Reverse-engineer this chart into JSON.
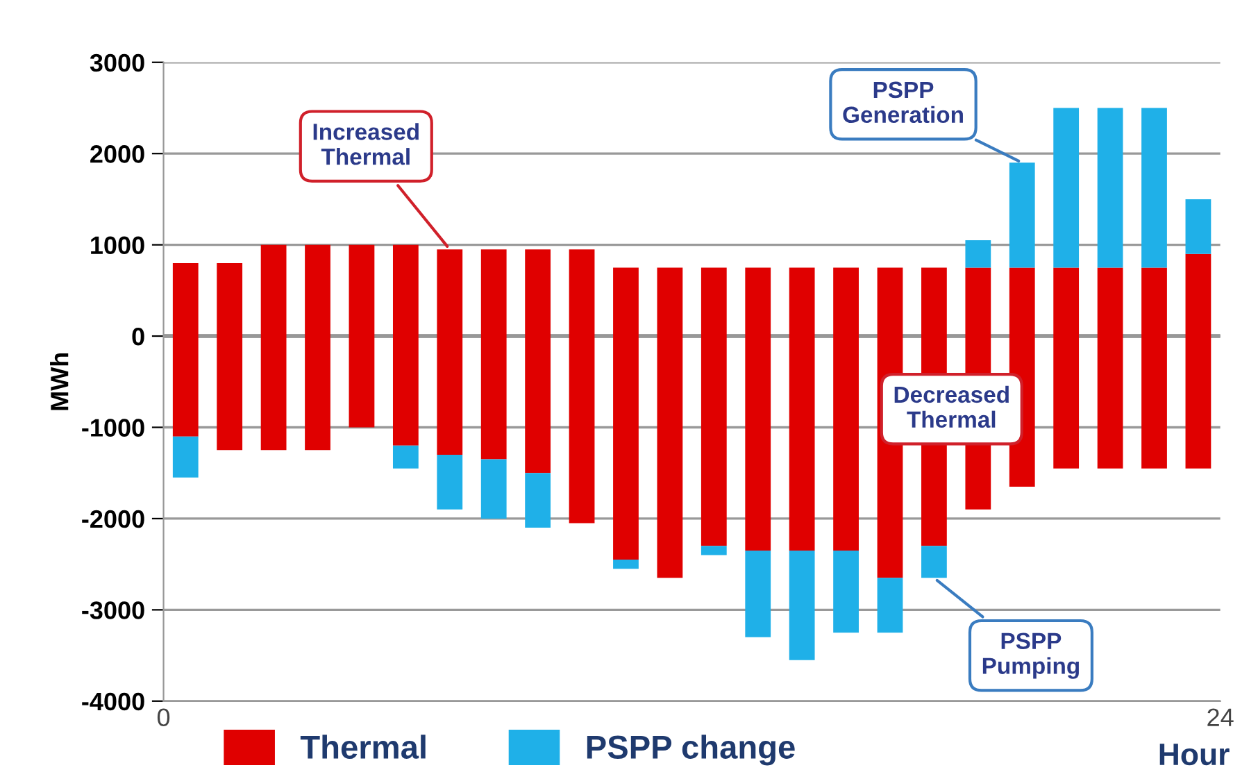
{
  "chart_data": {
    "type": "bar",
    "stacked": true,
    "ylabel": "MWh",
    "xlabel": "Hour",
    "x": [
      0.5,
      1.5,
      2.5,
      3.5,
      4.5,
      5.5,
      6.5,
      7.5,
      8.5,
      9.5,
      10.5,
      11.5,
      12.5,
      13.5,
      14.5,
      15.5,
      16.5,
      17.5,
      18.5,
      19.5,
      20.5,
      21.5,
      22.5,
      23.5
    ],
    "series": [
      {
        "name": "Thermal",
        "color": "#e00000",
        "values": [
          800,
          800,
          1000,
          1000,
          1000,
          1000,
          950,
          950,
          950,
          950,
          750,
          750,
          750,
          750,
          750,
          750,
          750,
          750,
          750,
          750,
          750,
          750,
          750,
          900
        ]
      },
      {
        "color": "#e00000",
        "values": [
          -1100,
          -1250,
          -1250,
          -1250,
          -1000,
          -1200,
          -1300,
          -1350,
          -1500,
          -2050,
          -2450,
          -2650,
          -2300,
          -2350,
          -2350,
          -2350,
          -2650,
          -2300,
          -1900,
          -1650,
          -1450,
          -1450,
          -1450,
          -1450
        ]
      },
      {
        "name": "PSPP change",
        "color": "#1fb0e8",
        "values": [
          null,
          null,
          null,
          null,
          null,
          null,
          null,
          null,
          null,
          null,
          null,
          null,
          null,
          null,
          null,
          null,
          null,
          null,
          300,
          1150,
          1750,
          1750,
          1750,
          600
        ]
      },
      {
        "color": "#1fb0e8",
        "values": [
          -450,
          null,
          null,
          null,
          null,
          -250,
          -600,
          -650,
          -600,
          null,
          -100,
          null,
          -100,
          -950,
          -1200,
          -900,
          -600,
          -350,
          null,
          null,
          null,
          null,
          null,
          null
        ]
      }
    ],
    "xlim": [
      0,
      24
    ],
    "xticks": [
      0,
      24
    ],
    "ylim": [
      -4000,
      3000
    ],
    "yticks": [
      -4000,
      -3000,
      -2000,
      -1000,
      0,
      1000,
      2000,
      3000
    ],
    "grid": "y",
    "legend": "bottom",
    "annotations": [
      {
        "text": "Increased\nThermal",
        "x": 6.5,
        "y": 950
      },
      {
        "text": "PSPP\nGeneration",
        "x": 19.5,
        "y": 1900
      },
      "Decreased\nThermal",
      {
        "text": "PSPP\nPumping",
        "x": 17.5,
        "y": -2650
      }
    ]
  }
}
